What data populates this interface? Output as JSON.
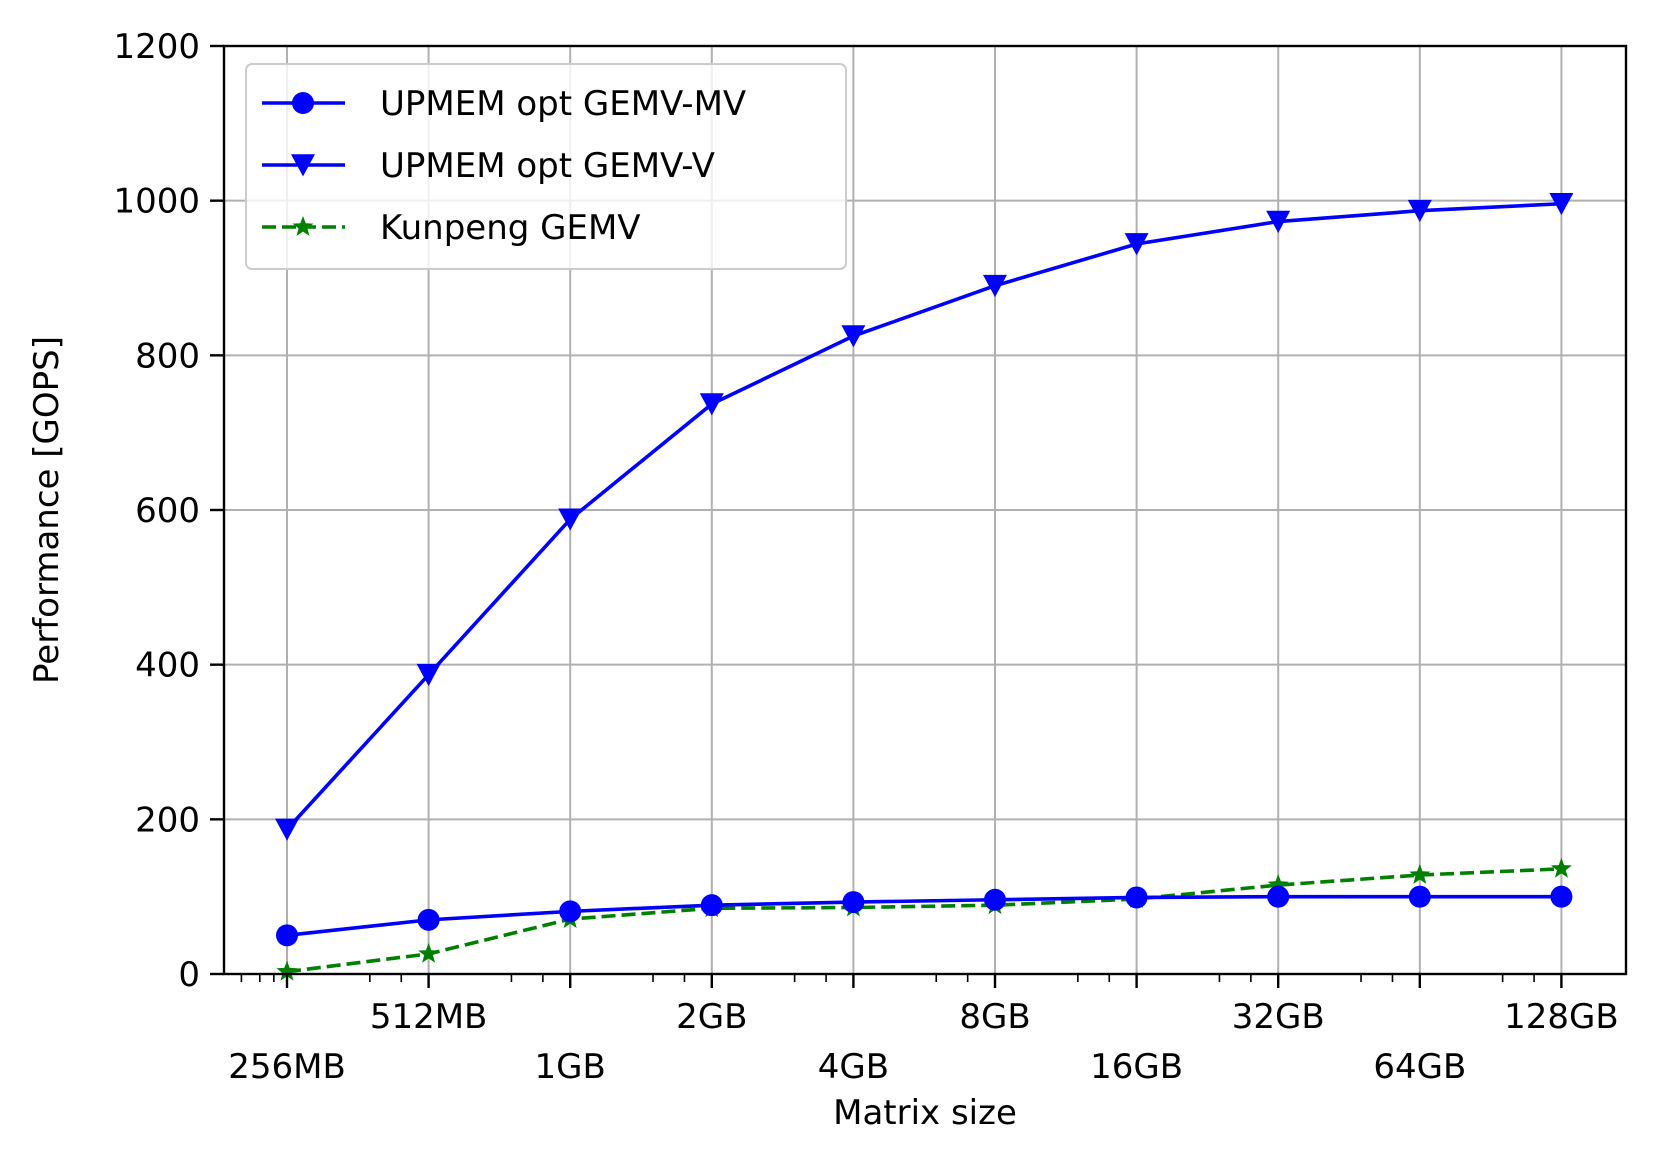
{
  "chart_data": {
    "type": "line",
    "xlabel": "Matrix size",
    "ylabel": "Performance [GOPS]",
    "categories": [
      "256MB",
      "512MB",
      "1GB",
      "2GB",
      "4GB",
      "8GB",
      "16GB",
      "32GB",
      "64GB",
      "128GB"
    ],
    "ylim": [
      0,
      1200
    ],
    "yticks": [
      0,
      200,
      400,
      600,
      800,
      1000,
      1200
    ],
    "grid": true,
    "legend_position": "top-left",
    "series": [
      {
        "name": "UPMEM opt GEMV-MV",
        "color": "#0000ff",
        "marker": "circle",
        "linestyle": "solid",
        "values": [
          50,
          70,
          81,
          89,
          93,
          96,
          99,
          100,
          100,
          100
        ]
      },
      {
        "name": "UPMEM opt GEMV-V",
        "color": "#0000ff",
        "marker": "triangle-down",
        "linestyle": "solid",
        "values": [
          187,
          387,
          588,
          737,
          825,
          890,
          944,
          973,
          987,
          996
        ]
      },
      {
        "name": "Kunpeng GEMV",
        "color": "#008000",
        "marker": "star",
        "linestyle": "dashed",
        "values": [
          3,
          26,
          71,
          85,
          86,
          89,
          97,
          115,
          128,
          136
        ]
      }
    ]
  }
}
